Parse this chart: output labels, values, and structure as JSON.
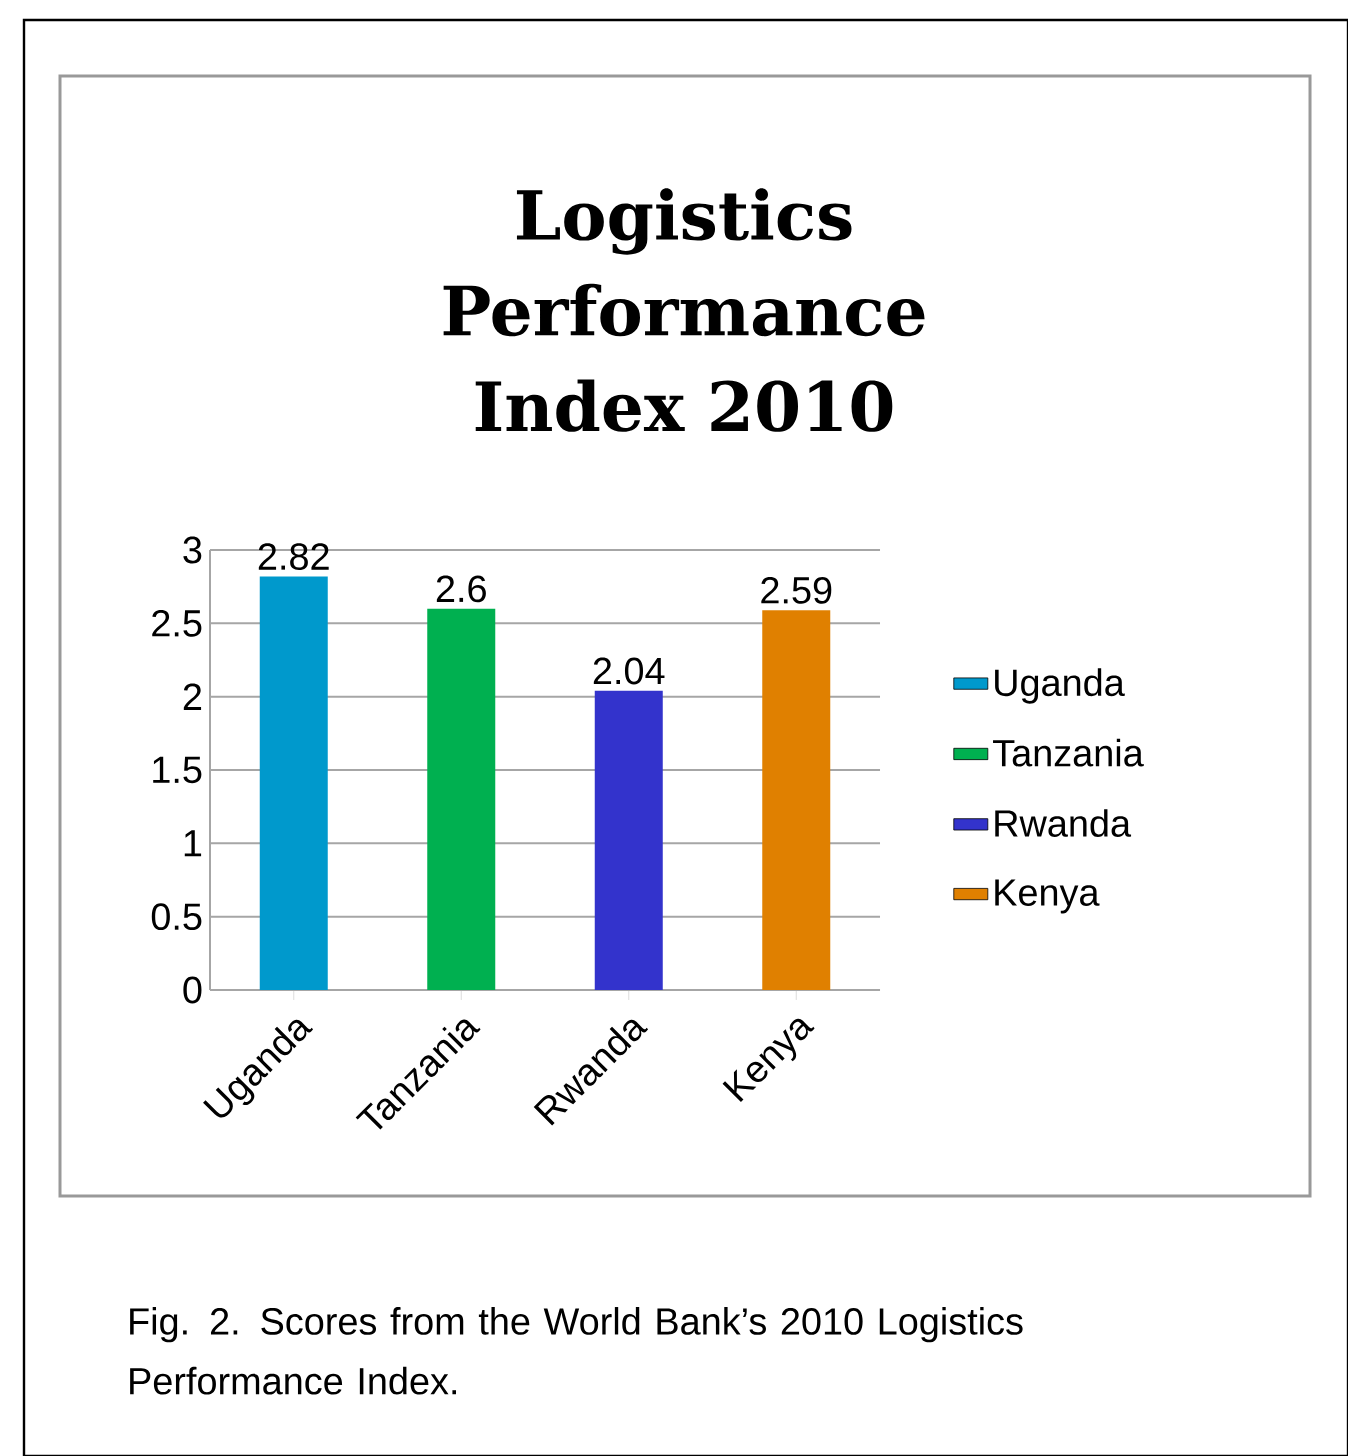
{
  "chart_data": {
    "type": "bar",
    "title": "Logistics Performance Index 2010",
    "categories": [
      "Uganda",
      "Tanzania",
      "Rwanda",
      "Kenya"
    ],
    "series": [
      {
        "name": "Uganda",
        "color": "#0099cc",
        "values": [
          2.82,
          null,
          null,
          null
        ],
        "value_labels": [
          "2.82",
          null,
          null,
          null
        ]
      },
      {
        "name": "Tanzania",
        "color": "#00b050",
        "values": [
          null,
          2.6,
          null,
          null
        ],
        "value_labels": [
          null,
          "2.6",
          null,
          null
        ]
      },
      {
        "name": "Rwanda",
        "color": "#3333cc",
        "values": [
          null,
          null,
          2.04,
          null
        ],
        "value_labels": [
          null,
          null,
          "2.04",
          null
        ]
      },
      {
        "name": "Kenya",
        "color": "#e08000",
        "values": [
          null,
          null,
          null,
          2.59
        ],
        "value_labels": [
          null,
          null,
          null,
          "2.59"
        ]
      }
    ],
    "ylim": [
      0,
      3
    ],
    "yticks": [
      0,
      0.5,
      1,
      1.5,
      2,
      2.5,
      3
    ],
    "grid": "y",
    "legend": "right",
    "annotations": [
      "Fig. 2.  Scores from the World Bank’s 2010 Logistics Performance Index."
    ]
  }
}
